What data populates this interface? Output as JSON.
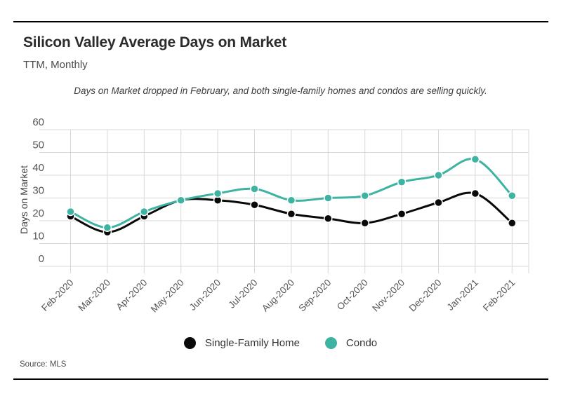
{
  "chart_data": {
    "type": "line",
    "title": "Silicon Valley Average Days on Market",
    "subtitle": "TTM, Monthly",
    "annotation": "Days on Market dropped in February, and both single-family homes and condos are selling quickly.",
    "ylabel": "Days on Market",
    "ylim": [
      0,
      60
    ],
    "yticks": [
      0,
      10,
      20,
      30,
      40,
      50,
      60
    ],
    "grid": true,
    "legend_position": "bottom-center",
    "categories": [
      "Feb-2020",
      "Mar-2020",
      "Apr-2020",
      "May-2020",
      "Jun-2020",
      "Jul-2020",
      "Aug-2020",
      "Sep-2020",
      "Oct-2020",
      "Nov-2020",
      "Dec-2020",
      "Jan-2021",
      "Feb-2021"
    ],
    "series": [
      {
        "name": "Single-Family Home",
        "color": "#0a0a0a",
        "values": [
          22,
          15,
          22,
          29,
          29,
          27,
          23,
          21,
          19,
          23,
          28,
          32,
          19
        ]
      },
      {
        "name": "Condo",
        "color": "#3fb3a2",
        "values": [
          24,
          17,
          24,
          29,
          32,
          34,
          29,
          30,
          31,
          37,
          40,
          47,
          31
        ]
      }
    ],
    "gridline_color": "#d8d8d8"
  },
  "footer": {
    "source": "Source: MLS"
  }
}
